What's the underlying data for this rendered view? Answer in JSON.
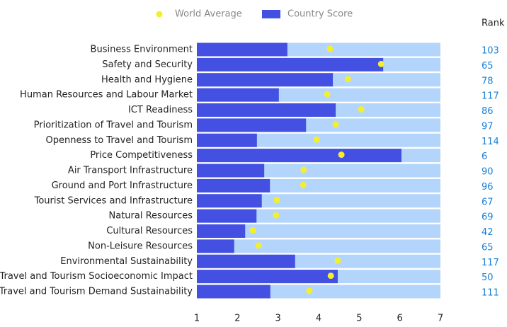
{
  "chart_data": {
    "type": "bar",
    "orientation": "horizontal",
    "categories": [
      "Business Environment",
      "Safety and Security",
      "Health and Hygiene",
      "Human Resources and Labour Market",
      "ICT Readiness",
      "Prioritization of Travel and Tourism",
      "Openness to Travel and Tourism",
      "Price Competitiveness",
      "Air Transport Infrastructure",
      "Ground and Port Infrastructure",
      "Tourist Services and Infrastructure",
      "Natural Resources",
      "Cultural Resources",
      "Non-Leisure Resources",
      "Environmental Sustainability",
      "Travel and Tourism Socioeconomic Impact",
      "Travel and Tourism Demand Sustainability"
    ],
    "series": [
      {
        "name": "World Average",
        "color": "#f3ef2e",
        "marker": "dot",
        "values": [
          4.28,
          5.54,
          4.72,
          4.21,
          5.05,
          4.42,
          3.95,
          4.56,
          3.63,
          3.62,
          2.97,
          2.95,
          2.38,
          2.52,
          4.47,
          4.3,
          3.77
        ]
      },
      {
        "name": "Country Score",
        "color": "#4450e2",
        "marker": "bar",
        "values": [
          3.23,
          5.59,
          4.35,
          3.02,
          4.42,
          3.69,
          2.48,
          6.04,
          2.66,
          2.8,
          2.6,
          2.47,
          2.19,
          1.92,
          3.42,
          4.47,
          2.81
        ]
      }
    ],
    "range_color": "#b4d5fb",
    "rank_title": "Rank",
    "ranks": [
      103,
      65,
      78,
      117,
      86,
      97,
      114,
      6,
      90,
      96,
      67,
      69,
      42,
      65,
      117,
      50,
      111
    ],
    "rank_color": "#1a7fd6",
    "xlim": [
      1,
      7
    ],
    "xticks": [
      1,
      2,
      3,
      4,
      5,
      6,
      7
    ],
    "legend": "top"
  }
}
